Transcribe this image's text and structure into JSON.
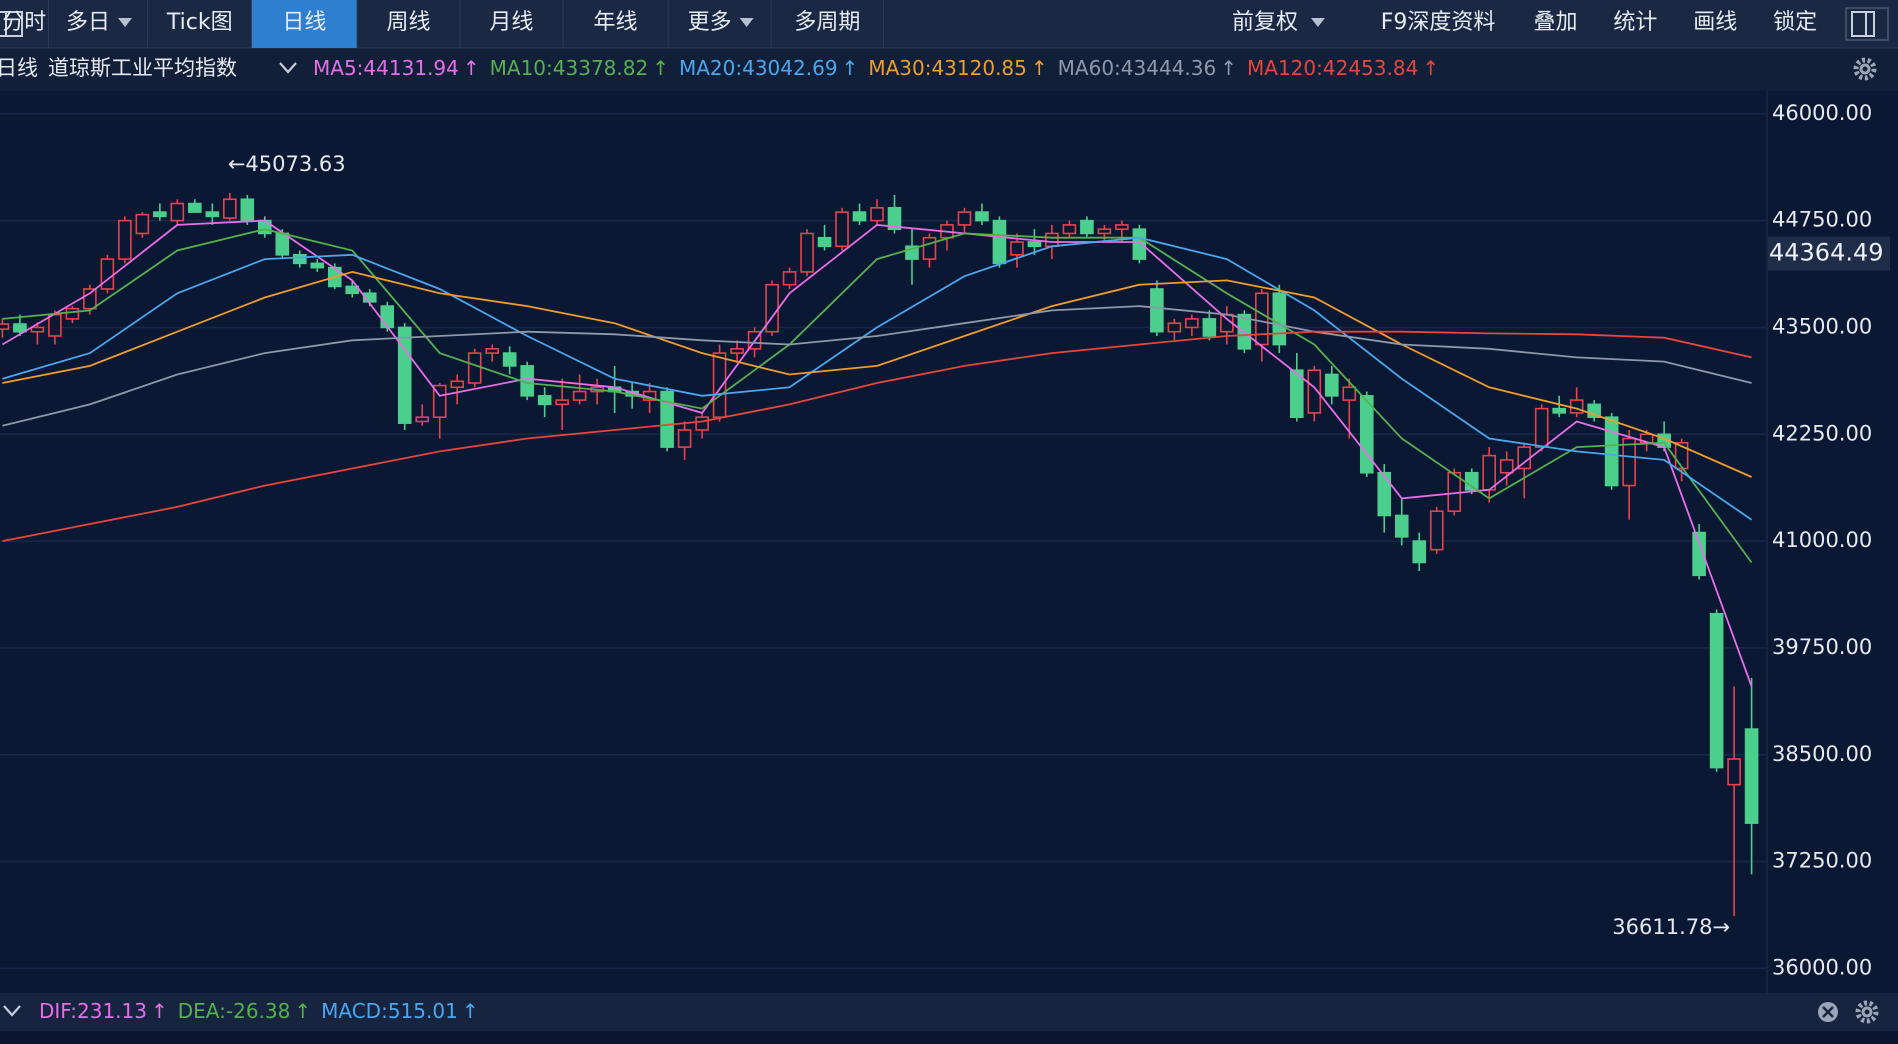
{
  "header": {
    "tabs": [
      "分时",
      "多日",
      "Tick图",
      "日线",
      "周线",
      "月线",
      "年线",
      "更多",
      "多周期"
    ],
    "dropdown_tabs": [
      1,
      7
    ],
    "active_tab": 3,
    "right_items": [
      "前复权",
      "F9深度资料",
      "叠加",
      "统计",
      "画线",
      "锁定"
    ]
  },
  "chart_data": {
    "type": "candlestick",
    "period": "日线",
    "title": "道琼斯工业平均指数",
    "name_separator": ":",
    "trend_arrow": "↑",
    "ylim": [
      36000,
      46000
    ],
    "yticks": [
      {
        "value": 46000,
        "label": "46000.00"
      },
      {
        "value": 44750,
        "label": "44750.00"
      },
      {
        "value": 43500,
        "label": "43500.00"
      },
      {
        "value": 42250,
        "label": "42250.00"
      },
      {
        "value": 41000,
        "label": "41000.00"
      },
      {
        "value": 39750,
        "label": "39750.00"
      },
      {
        "value": 38500,
        "label": "38500.00"
      },
      {
        "value": 37250,
        "label": "37250.00"
      },
      {
        "value": 36000,
        "label": "36000.00"
      }
    ],
    "grid": true,
    "up_color": "#e8434b",
    "down_color": "#4ccf8c",
    "last_price": 44364.49,
    "annotations": [
      {
        "text": "←45073.63",
        "index": 13,
        "value": 45073.63
      },
      {
        "text": "36611.78→",
        "index": 99,
        "value": 36611.78
      }
    ],
    "candles": {
      "open": [
        43480,
        43540,
        43450,
        43400,
        43600,
        43720,
        43950,
        44300,
        44600,
        44850,
        44750,
        44950,
        44850,
        44780,
        45000,
        44750,
        44600,
        44350,
        44250,
        44200,
        43980,
        43900,
        43750,
        43500,
        42400,
        42450,
        42800,
        42850,
        43200,
        43200,
        43050,
        42700,
        42600,
        42650,
        42750,
        42800,
        42750,
        42650,
        42750,
        42100,
        42300,
        42450,
        43200,
        43250,
        43450,
        44000,
        44150,
        44550,
        44450,
        44850,
        44750,
        44900,
        44450,
        44300,
        44550,
        44700,
        44850,
        44750,
        44350,
        44500,
        44450,
        44600,
        44750,
        44600,
        44650,
        44650,
        43950,
        43450,
        43500,
        43600,
        43450,
        43650,
        43300,
        43900,
        43000,
        42500,
        42950,
        42650,
        42700,
        41800,
        41300,
        41000,
        40900,
        41350,
        41800,
        41600,
        41800,
        41850,
        42100,
        42550,
        42500,
        42600,
        42450,
        41650,
        42150,
        42250,
        41850,
        41100,
        40150,
        38150,
        38800
      ],
      "high": [
        43600,
        43650,
        43560,
        43700,
        43750,
        44000,
        44350,
        44800,
        44850,
        44950,
        45000,
        45000,
        44950,
        45073.63,
        45050,
        44800,
        44650,
        44400,
        44300,
        44250,
        44050,
        43950,
        43800,
        43550,
        42600,
        42850,
        42950,
        43250,
        43300,
        43280,
        43100,
        42800,
        42900,
        42950,
        42900,
        43050,
        42850,
        42850,
        42800,
        42400,
        42500,
        43300,
        43350,
        43500,
        44050,
        44200,
        44650,
        44700,
        44900,
        44950,
        45000,
        45050,
        44650,
        44600,
        44750,
        44900,
        44950,
        44800,
        44600,
        44650,
        44700,
        44750,
        44800,
        44700,
        44750,
        44700,
        44050,
        43600,
        43650,
        43700,
        43750,
        43700,
        43950,
        44000,
        43200,
        43050,
        43050,
        42900,
        42750,
        41900,
        41500,
        41100,
        41400,
        41850,
        41850,
        42100,
        42050,
        42150,
        42600,
        42700,
        42800,
        42650,
        42500,
        42300,
        42300,
        42400,
        42200,
        41200,
        40200,
        39300,
        39400
      ],
      "low": [
        43380,
        43400,
        43300,
        43300,
        43550,
        43650,
        43900,
        44250,
        44550,
        44750,
        44700,
        44850,
        44700,
        44750,
        44700,
        44550,
        44300,
        44200,
        44150,
        43950,
        43850,
        43750,
        43450,
        42300,
        42350,
        42200,
        42600,
        42800,
        43100,
        42950,
        42650,
        42450,
        42300,
        42600,
        42600,
        42500,
        42550,
        42500,
        42050,
        41950,
        42200,
        42400,
        43100,
        43150,
        43400,
        43950,
        44100,
        44400,
        44400,
        44700,
        44700,
        44600,
        44000,
        44200,
        44400,
        44600,
        44700,
        44200,
        44200,
        44350,
        44300,
        44550,
        44550,
        44500,
        44500,
        44250,
        43400,
        43350,
        43400,
        43350,
        43300,
        43200,
        43100,
        43200,
        42400,
        42400,
        42600,
        42200,
        41750,
        41100,
        40950,
        40650,
        40850,
        41300,
        41550,
        41450,
        41650,
        41500,
        42050,
        42450,
        42450,
        42400,
        41600,
        41250,
        42050,
        42050,
        41700,
        40550,
        38300,
        36611.78,
        37100
      ],
      "close": [
        43540,
        43450,
        43500,
        43650,
        43720,
        43950,
        44300,
        44750,
        44820,
        44800,
        44950,
        44850,
        44800,
        45000,
        44750,
        44600,
        44350,
        44250,
        44200,
        43980,
        43900,
        43800,
        43500,
        42380,
        42450,
        42820,
        42870,
        43200,
        43250,
        43050,
        42700,
        42600,
        42650,
        42750,
        42800,
        42750,
        42700,
        42750,
        42100,
        42300,
        42450,
        43200,
        43250,
        43450,
        44000,
        44150,
        44600,
        44450,
        44850,
        44750,
        44900,
        44650,
        44300,
        44550,
        44700,
        44850,
        44750,
        44250,
        44500,
        44450,
        44600,
        44700,
        44600,
        44650,
        44700,
        44300,
        43450,
        43550,
        43600,
        43400,
        43650,
        43250,
        43900,
        43300,
        42450,
        43000,
        42700,
        42800,
        41800,
        41300,
        41050,
        40750,
        41350,
        41800,
        41600,
        42000,
        41950,
        42100,
        42550,
        42500,
        42650,
        42450,
        41650,
        42200,
        42250,
        42100,
        42150,
        40600,
        38350,
        38450,
        37700
      ]
    },
    "ma_x": [
      0,
      5,
      10,
      15,
      20,
      25,
      30,
      35,
      40,
      45,
      50,
      55,
      60,
      65,
      70,
      75,
      80,
      85,
      90,
      95,
      100
    ],
    "series": [
      {
        "name": "MA5",
        "last_value": 44131.94,
        "color": "#e86ee8",
        "values": [
          43300,
          43900,
          44700,
          44750,
          44050,
          42700,
          42900,
          42800,
          42500,
          43900,
          44700,
          44600,
          44500,
          44500,
          43600,
          42800,
          41500,
          41600,
          42400,
          42100,
          39300
        ]
      },
      {
        "name": "MA10",
        "last_value": 43378.82,
        "color": "#56b04f",
        "values": [
          43600,
          43700,
          44400,
          44650,
          44400,
          43200,
          42850,
          42750,
          42550,
          43300,
          44300,
          44600,
          44550,
          44550,
          43900,
          43300,
          42200,
          41500,
          42100,
          42150,
          40750
        ]
      },
      {
        "name": "MA20",
        "last_value": 43042.69,
        "color": "#4aa6ee",
        "values": [
          42900,
          43200,
          43900,
          44300,
          44350,
          43950,
          43400,
          42900,
          42700,
          42800,
          43500,
          44100,
          44450,
          44550,
          44300,
          43700,
          42900,
          42200,
          42050,
          41950,
          41250
        ]
      },
      {
        "name": "MA30",
        "last_value": 43120.85,
        "color": "#ef9d2a",
        "values": [
          42850,
          43050,
          43450,
          43850,
          44150,
          43900,
          43750,
          43550,
          43200,
          42950,
          43050,
          43400,
          43750,
          44000,
          44050,
          43850,
          43300,
          42800,
          42550,
          42200,
          41750
        ]
      },
      {
        "name": "MA60",
        "last_value": 43444.36,
        "color": "#8e98ab",
        "values": [
          42350,
          42600,
          42950,
          43200,
          43350,
          43400,
          43450,
          43420,
          43350,
          43300,
          43400,
          43550,
          43700,
          43750,
          43650,
          43450,
          43300,
          43250,
          43150,
          43100,
          42850
        ]
      },
      {
        "name": "MA120",
        "last_value": 42453.84,
        "color": "#e8453c",
        "values": [
          41000,
          41200,
          41400,
          41650,
          41850,
          42050,
          42200,
          42300,
          42400,
          42600,
          42850,
          43050,
          43200,
          43300,
          43400,
          43450,
          43450,
          43430,
          43420,
          43380,
          43150
        ]
      }
    ],
    "macd_legend": [
      {
        "name": "DIF",
        "value": 231.13,
        "color": "#e86ee8"
      },
      {
        "name": "DEA",
        "value": -26.38,
        "color": "#56b04f"
      },
      {
        "name": "MACD",
        "value": 515.01,
        "color": "#4aa6ee"
      }
    ]
  }
}
